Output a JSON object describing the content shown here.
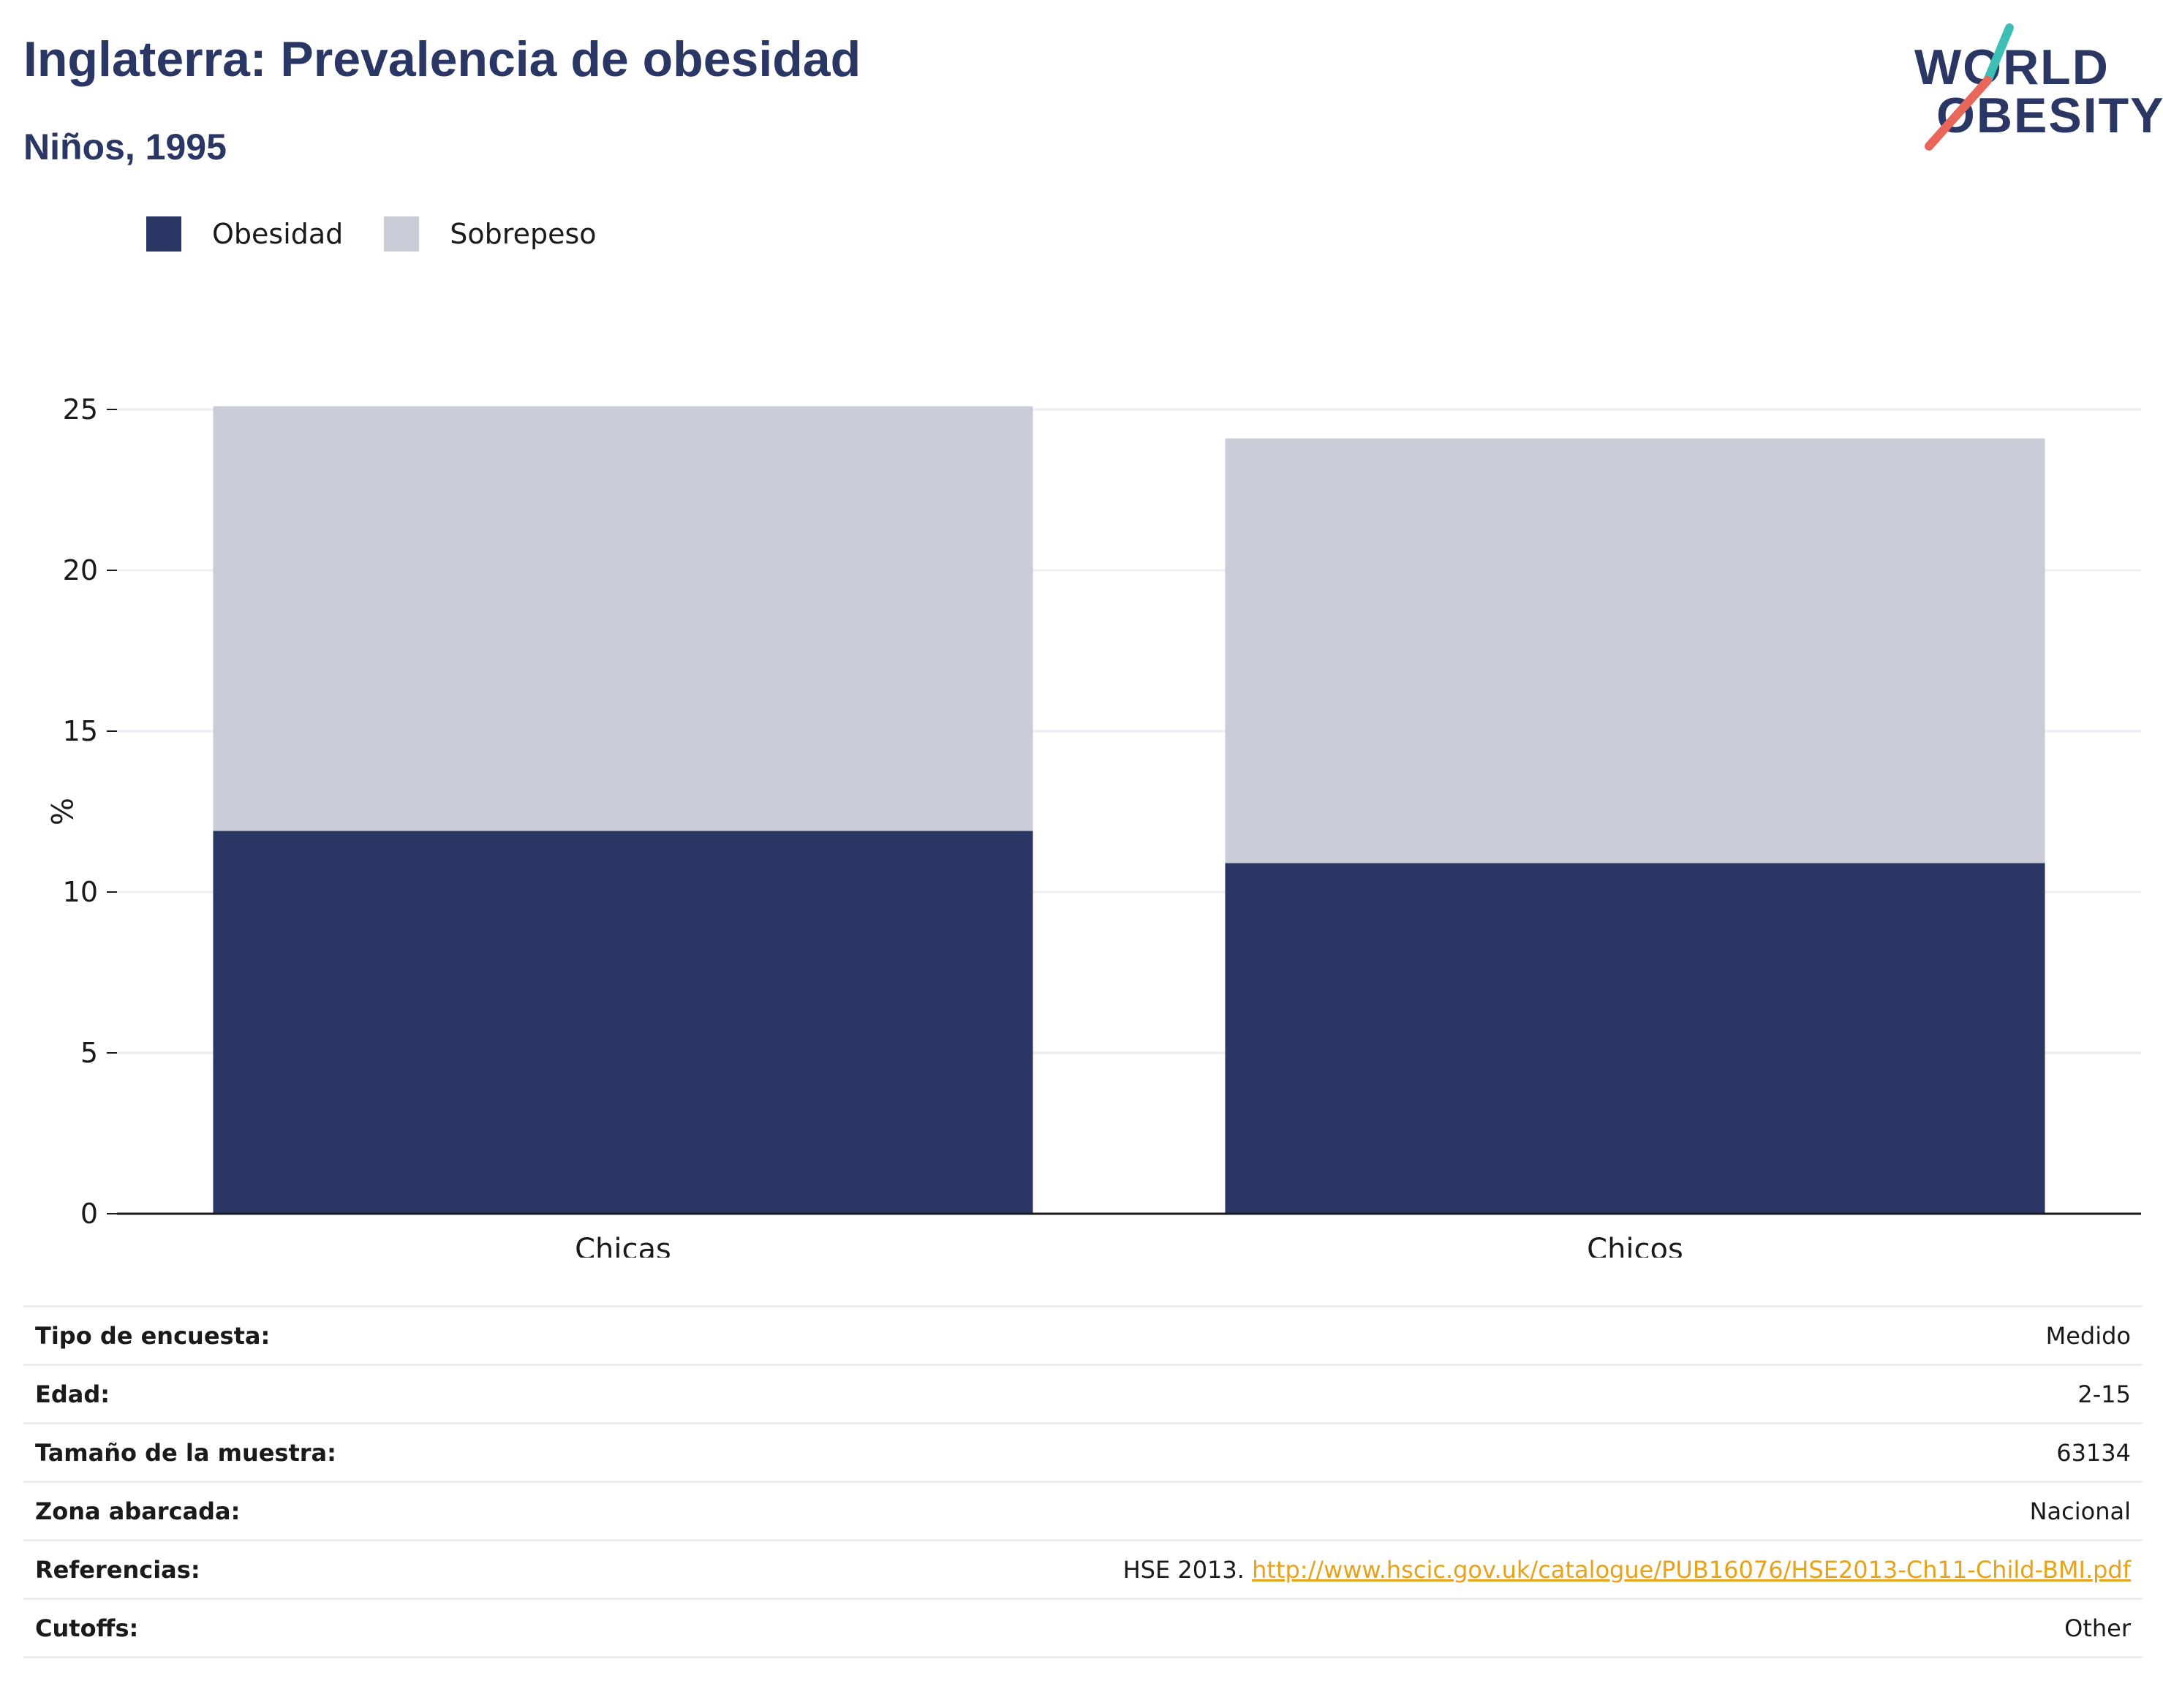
{
  "header": {
    "title": "Inglaterra: Prevalencia de obesidad",
    "subtitle": "Niños, 1995"
  },
  "logo": {
    "line1": "WORLD",
    "line2": "OBESITY"
  },
  "colors": {
    "obesity": "#2a3663",
    "overweight": "#c9cbd7",
    "link": "#e8a21a",
    "logo_teal": "#3dbfb5",
    "logo_coral": "#e8675a"
  },
  "legend": [
    {
      "label": "Obesidad",
      "color": "#2a3663"
    },
    {
      "label": "Sobrepeso",
      "color": "#c9cbd7"
    }
  ],
  "chart_data": {
    "type": "bar",
    "stacked": true,
    "categories": [
      "Chicas",
      "Chicos"
    ],
    "series": [
      {
        "name": "Obesidad",
        "values": [
          11.9,
          10.9
        ]
      },
      {
        "name": "Sobrepeso",
        "values": [
          13.2,
          13.2
        ]
      }
    ],
    "title": "Inglaterra: Prevalencia de obesidad",
    "subtitle": "Niños, 1995",
    "xlabel": "",
    "ylabel": "%",
    "ylim": [
      0,
      25
    ],
    "yticks": [
      0,
      5,
      10,
      15,
      20,
      25
    ],
    "grid": true,
    "legend_position": "top-left"
  },
  "info_table": {
    "rows": [
      {
        "key": "Tipo de encuesta:",
        "value": "Medido"
      },
      {
        "key": "Edad:",
        "value": "2-15"
      },
      {
        "key": "Tamaño de la muestra:",
        "value": "63134"
      },
      {
        "key": "Zona abarcada:",
        "value": "Nacional"
      },
      {
        "key": "Referencias:",
        "value": "HSE 2013.",
        "link": "http://www.hscic.gov.uk/catalogue/PUB16076/HSE2013-Ch11-Child-BMI.pdf"
      },
      {
        "key": "Cutoffs:",
        "value": "Other"
      }
    ]
  }
}
